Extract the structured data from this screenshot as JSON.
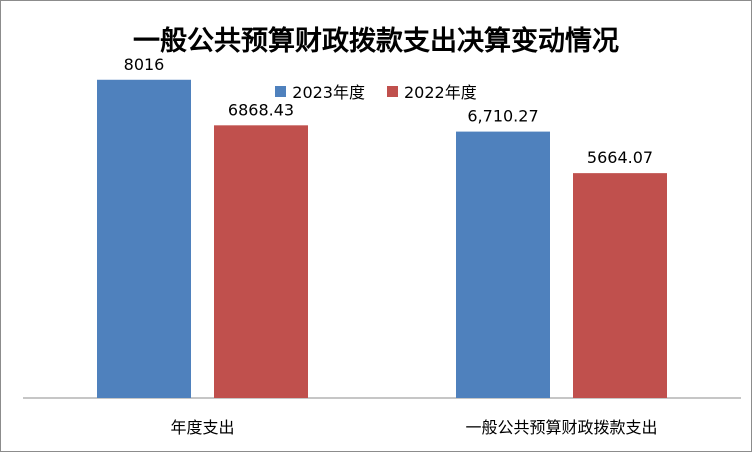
{
  "colors": {
    "s2023": "#4f81bd",
    "s2022": "#c0504d",
    "axis": "#8c8c8c"
  },
  "chart_data": {
    "type": "bar",
    "title": "一般公共预算财政拨款支出决算变动情况",
    "categories": [
      "年度支出",
      "一般公共预算财政拨款支出"
    ],
    "series": [
      {
        "name": "2023年度",
        "values": [
          8016,
          6710.27
        ],
        "labels": [
          "8016",
          "6,710.27"
        ]
      },
      {
        "name": "2022年度",
        "values": [
          6868.43,
          5664.07
        ],
        "labels": [
          "6868.43",
          "5664.07"
        ]
      }
    ],
    "ylim": [
      0,
      10000
    ],
    "legend": "top",
    "grid": false
  }
}
